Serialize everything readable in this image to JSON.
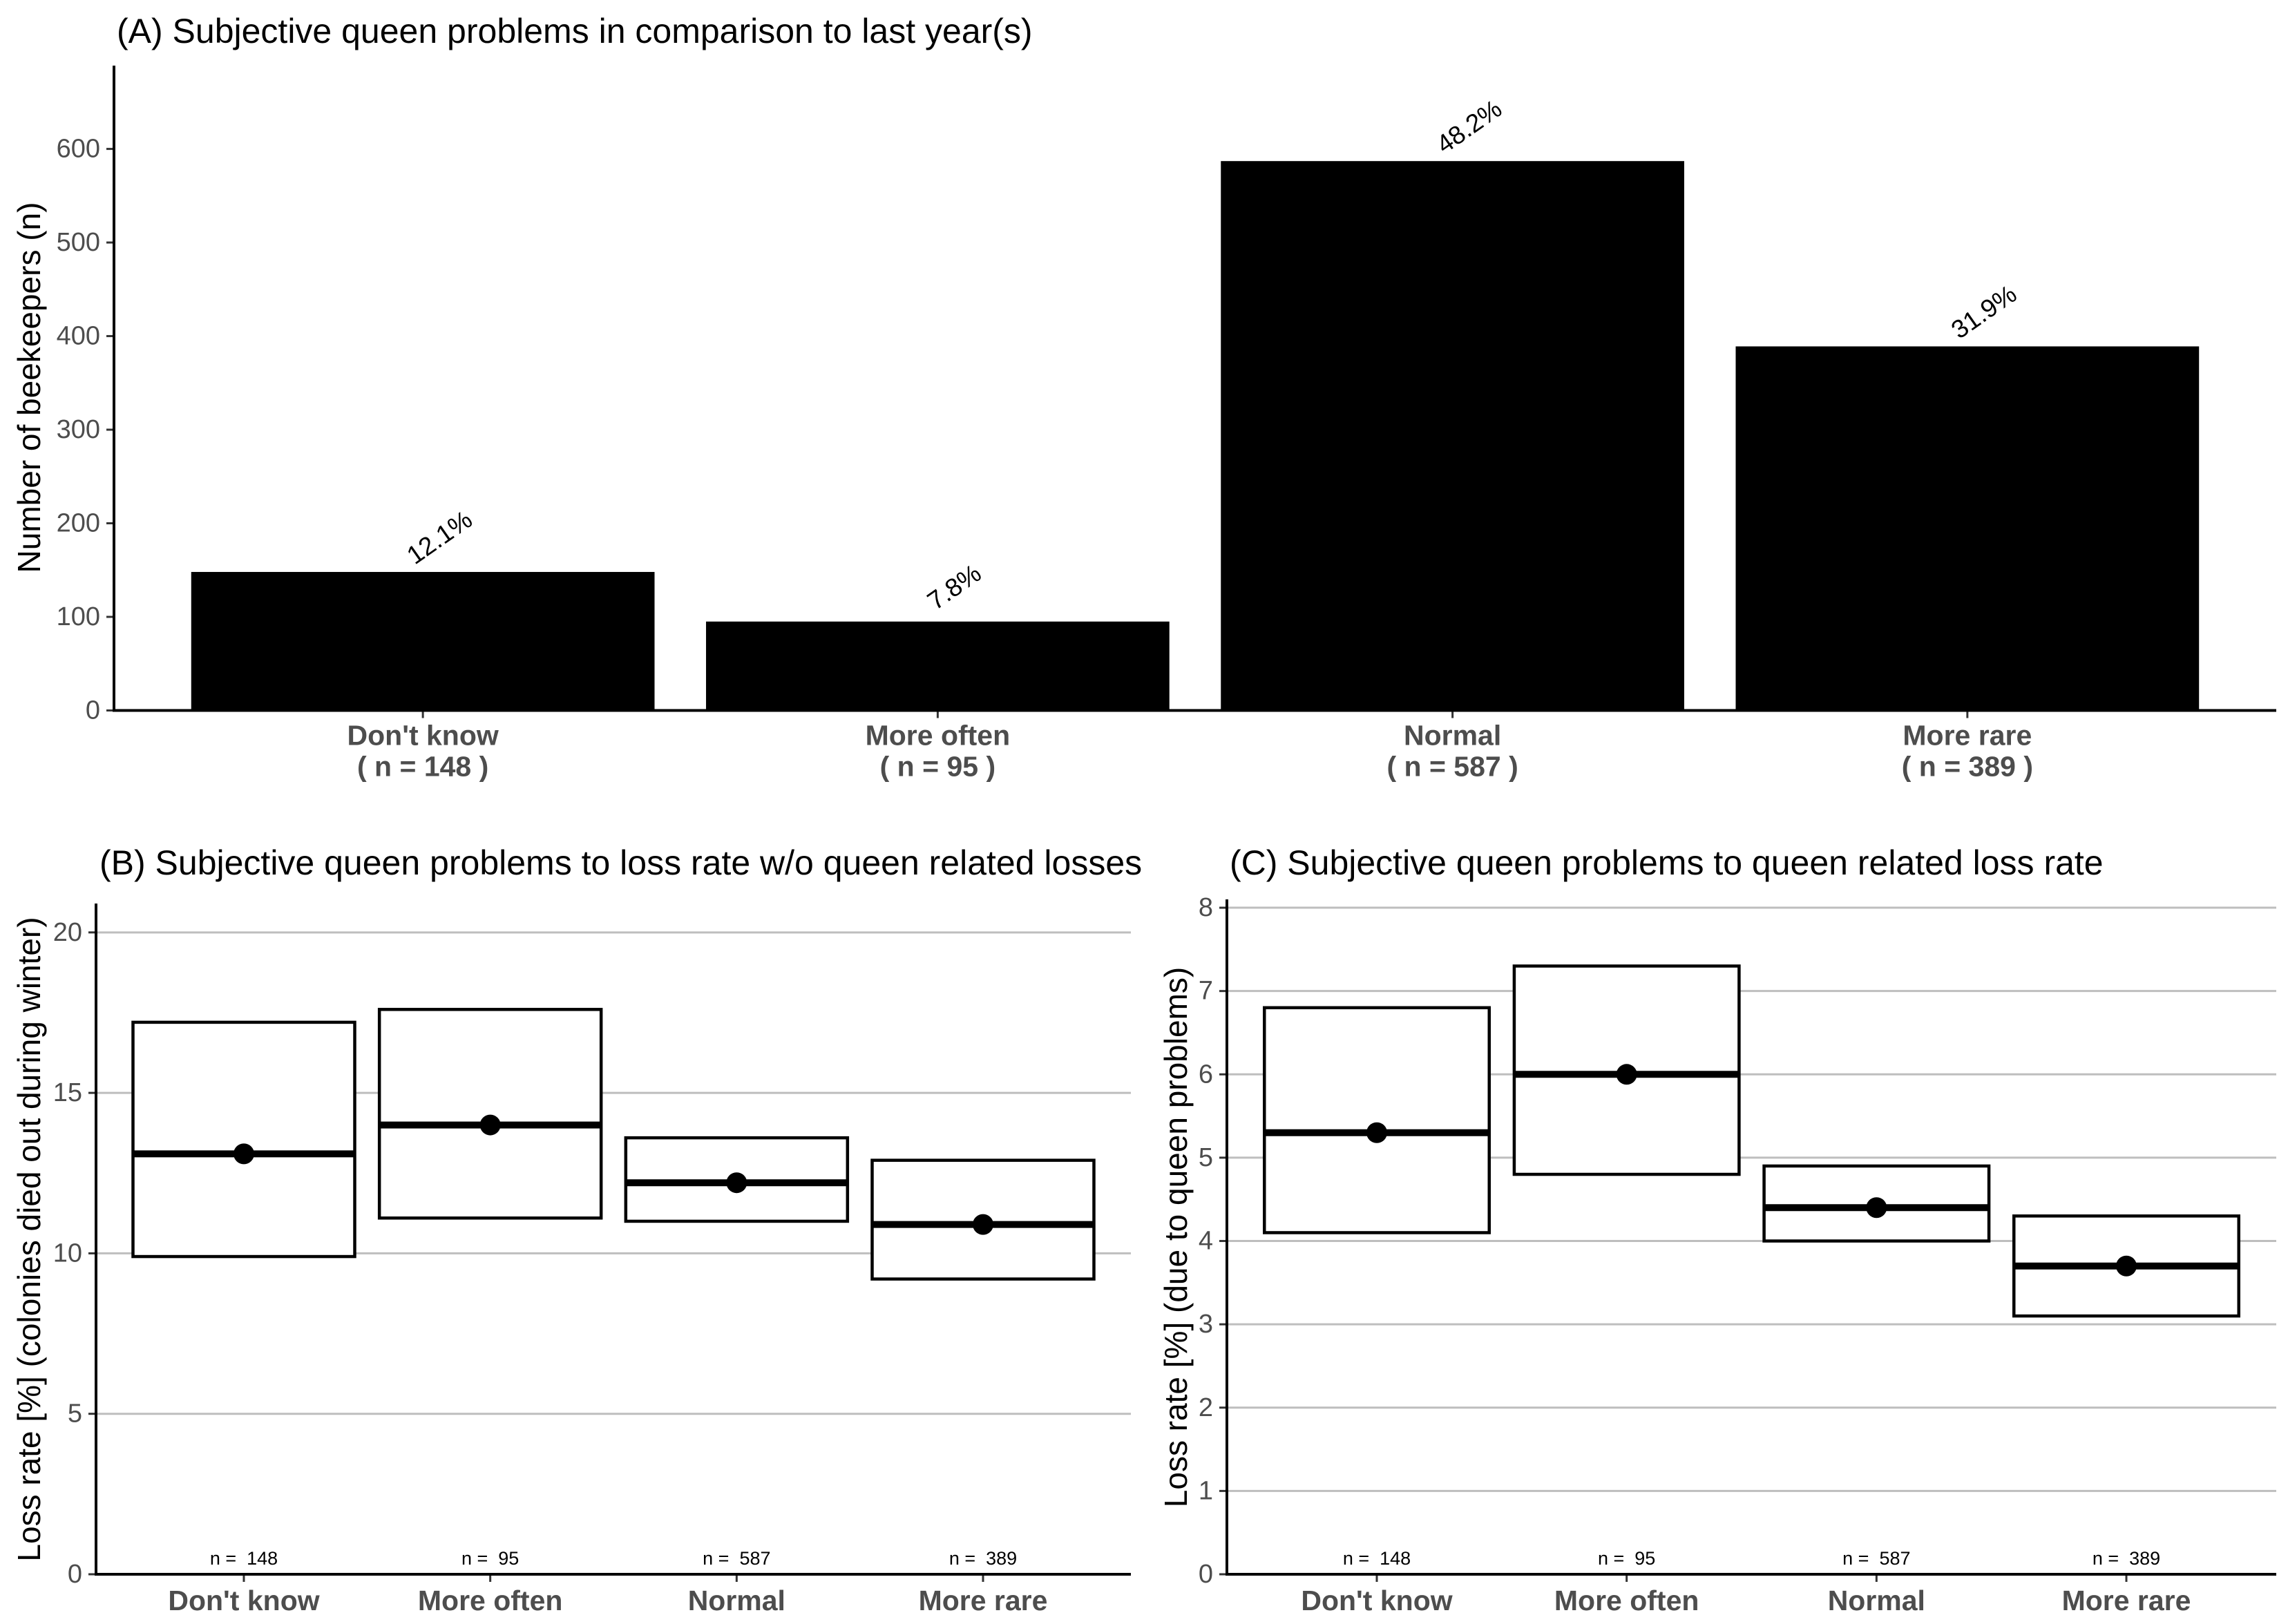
{
  "chart_data": [
    {
      "type": "bar",
      "title": "(A) Subjective queen problems in comparison to last year(s)",
      "ylabel": "Number of beekeepers (n)",
      "categories": [
        "Don't know",
        "More often",
        "Normal",
        "More rare"
      ],
      "category_n_labels": [
        "( n = 148 )",
        "( n = 95 )",
        "( n = 587 )",
        "( n = 389 )"
      ],
      "values": [
        148,
        95,
        587,
        389
      ],
      "bar_labels": [
        "12.1%",
        "7.8%",
        "48.2%",
        "31.9%"
      ],
      "ylim": [
        0,
        689
      ],
      "yticks": [
        0,
        100,
        200,
        300,
        400,
        500,
        600
      ],
      "grid": false,
      "bar_color": "#000000"
    },
    {
      "type": "scatter",
      "title": "(B) Subjective queen problems to loss rate w/o queen related losses",
      "ylabel": "Loss rate [%] (colonies died out during winter)",
      "categories": [
        "Don't know",
        "More often",
        "Normal",
        "More rare"
      ],
      "mean": [
        13.1,
        14.0,
        12.2,
        10.9
      ],
      "lower": [
        9.9,
        11.1,
        11.0,
        9.2
      ],
      "upper": [
        17.2,
        17.6,
        13.6,
        12.9
      ],
      "n_labels": [
        "n =  148",
        "n =  95",
        "n =  587",
        "n =  389"
      ],
      "ylim": [
        0,
        20.9
      ],
      "yticks": [
        0,
        5,
        10,
        15,
        20
      ],
      "grid": true
    },
    {
      "type": "scatter",
      "title": "(C) Subjective queen problems to queen related loss rate",
      "ylabel": "Loss rate [%] (due to queen problems)",
      "categories": [
        "Don't know",
        "More often",
        "Normal",
        "More rare"
      ],
      "mean": [
        5.3,
        6.0,
        4.4,
        3.7
      ],
      "lower": [
        4.1,
        4.8,
        4.0,
        3.1
      ],
      "upper": [
        6.8,
        7.3,
        4.9,
        4.3
      ],
      "n_labels": [
        "n =  148",
        "n =  95",
        "n =  587",
        "n =  389"
      ],
      "ylim": [
        0,
        8.1
      ],
      "yticks": [
        0,
        1,
        2,
        3,
        4,
        5,
        6,
        7,
        8
      ],
      "grid": true
    }
  ]
}
